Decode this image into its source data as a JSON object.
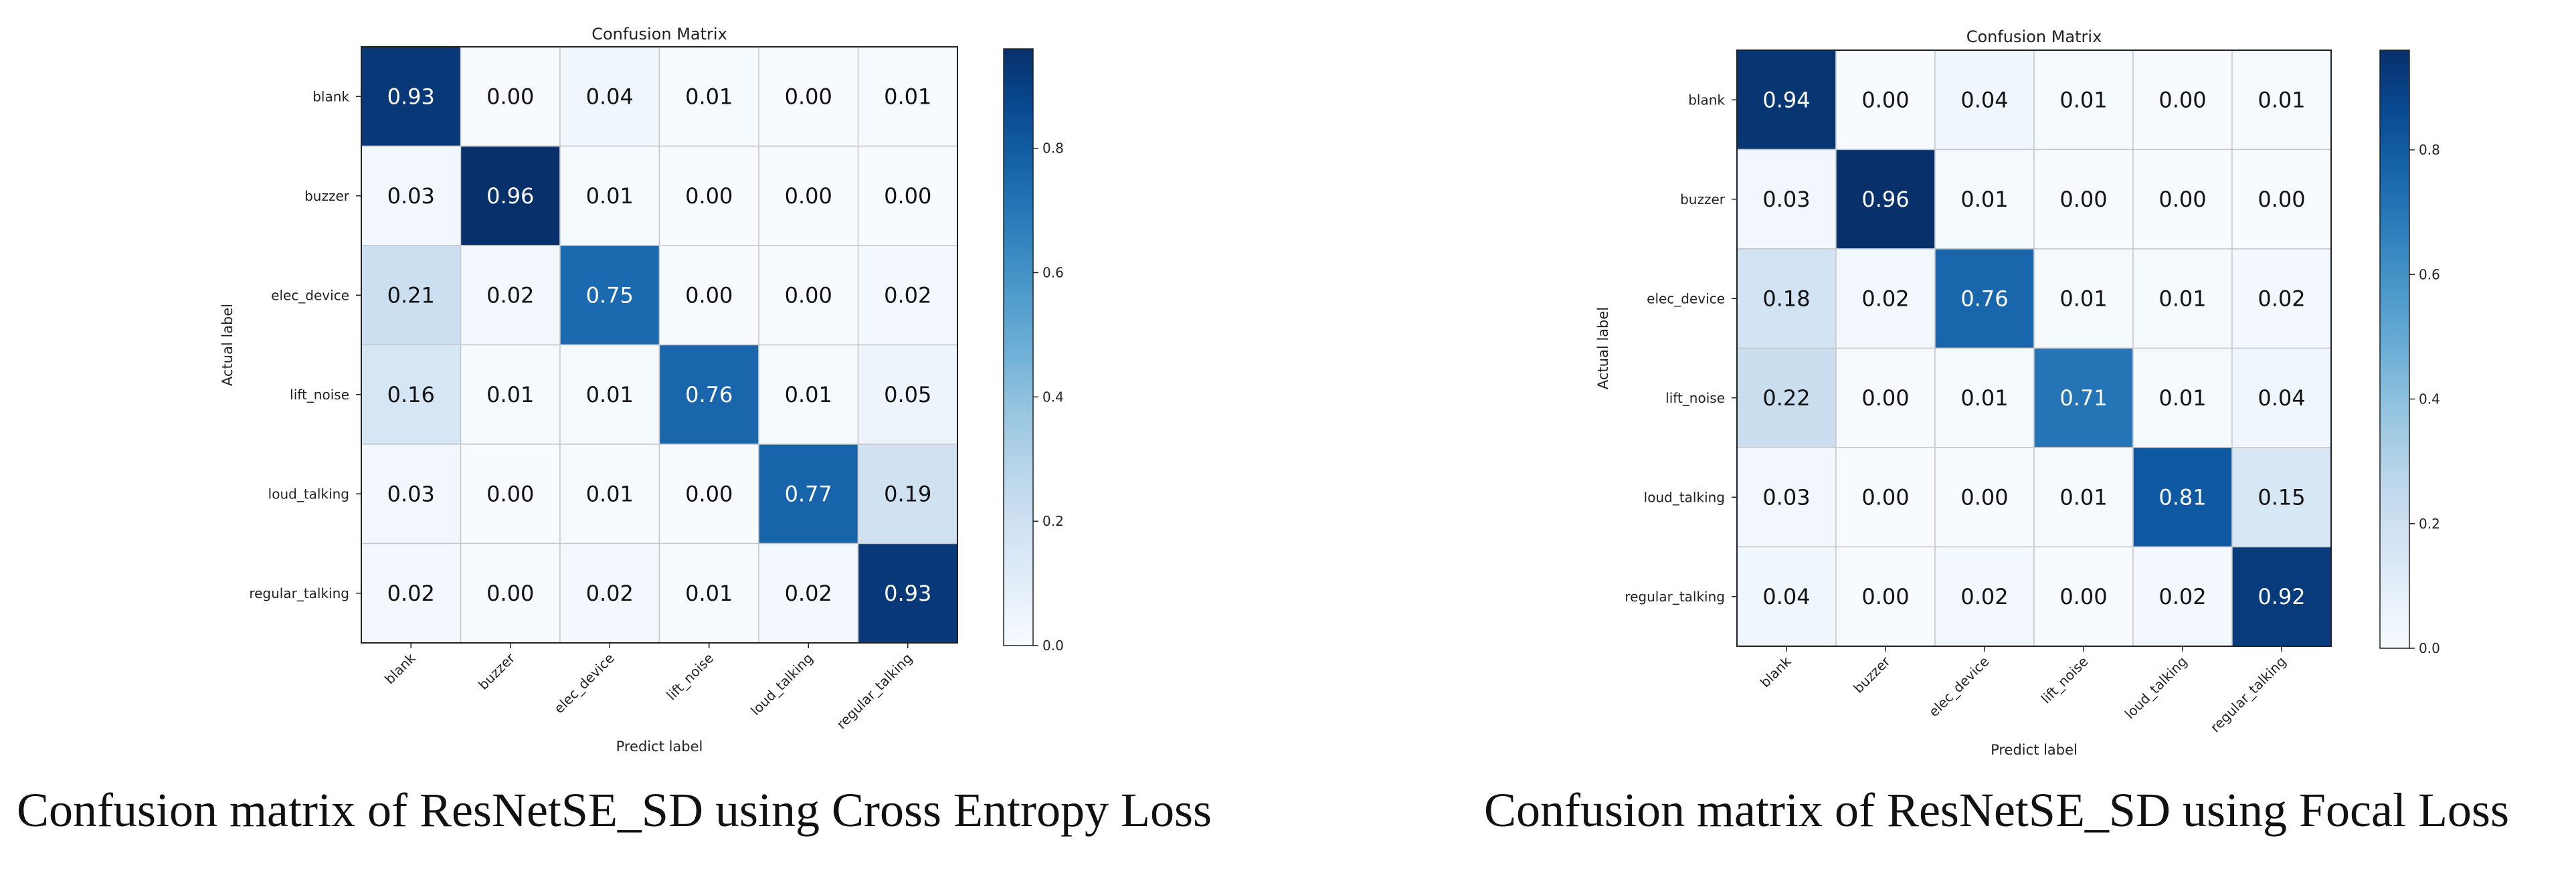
{
  "chart_data": [
    {
      "type": "heatmap",
      "title": "Confusion Matrix",
      "xlabel": "Predict label",
      "ylabel": "Actual label",
      "row_labels": [
        "blank",
        "buzzer",
        "elec_device",
        "lift_noise",
        "loud_talking",
        "regular_talking"
      ],
      "col_labels": [
        "blank",
        "buzzer",
        "elec_device",
        "lift_noise",
        "loud_talking",
        "regular_talking"
      ],
      "values": [
        [
          0.93,
          0.0,
          0.04,
          0.01,
          0.0,
          0.01
        ],
        [
          0.03,
          0.96,
          0.01,
          0.0,
          0.0,
          0.0
        ],
        [
          0.21,
          0.02,
          0.75,
          0.0,
          0.0,
          0.02
        ],
        [
          0.16,
          0.01,
          0.01,
          0.76,
          0.01,
          0.05
        ],
        [
          0.03,
          0.0,
          0.01,
          0.0,
          0.77,
          0.19
        ],
        [
          0.02,
          0.0,
          0.02,
          0.01,
          0.02,
          0.93
        ]
      ],
      "cell_labels": [
        [
          "0.93",
          "0.00",
          "0.04",
          "0.01",
          "0.00",
          "0.01"
        ],
        [
          "0.03",
          "0.96",
          "0.01",
          "0.00",
          "0.00",
          "0.00"
        ],
        [
          "0.21",
          "0.02",
          "0.75",
          "0.00",
          "0.00",
          "0.02"
        ],
        [
          "0.16",
          "0.01",
          "0.01",
          "0.76",
          "0.01",
          "0.05"
        ],
        [
          "0.03",
          "0.00",
          "0.01",
          "0.00",
          "0.77",
          "0.19"
        ],
        [
          "0.02",
          "0.00",
          "0.02",
          "0.01",
          "0.02",
          "0.93"
        ]
      ],
      "colorbar": {
        "range": [
          0,
          0.96
        ],
        "ticks": [
          0.0,
          0.2,
          0.4,
          0.6,
          0.8
        ],
        "tick_labels": [
          "0.0",
          "0.2",
          "0.4",
          "0.6",
          "0.8"
        ],
        "colormap": "Blues"
      },
      "caption": "Confusion matrix of ResNetSE_SD using Cross Entropy Loss"
    },
    {
      "type": "heatmap",
      "title": "Confusion Matrix",
      "xlabel": "Predict label",
      "ylabel": "Actual label",
      "row_labels": [
        "blank",
        "buzzer",
        "elec_device",
        "lift_noise",
        "loud_talking",
        "regular_talking"
      ],
      "col_labels": [
        "blank",
        "buzzer",
        "elec_device",
        "lift_noise",
        "loud_talking",
        "regular_talking"
      ],
      "values": [
        [
          0.94,
          0.0,
          0.04,
          0.01,
          0.0,
          0.01
        ],
        [
          0.03,
          0.96,
          0.01,
          0.0,
          0.0,
          0.0
        ],
        [
          0.18,
          0.02,
          0.76,
          0.01,
          0.01,
          0.02
        ],
        [
          0.22,
          0.0,
          0.01,
          0.71,
          0.01,
          0.04
        ],
        [
          0.03,
          0.0,
          0.0,
          0.01,
          0.81,
          0.15
        ],
        [
          0.04,
          0.0,
          0.02,
          0.0,
          0.02,
          0.92
        ]
      ],
      "cell_labels": [
        [
          "0.94",
          "0.00",
          "0.04",
          "0.01",
          "0.00",
          "0.01"
        ],
        [
          "0.03",
          "0.96",
          "0.01",
          "0.00",
          "0.00",
          "0.00"
        ],
        [
          "0.18",
          "0.02",
          "0.76",
          "0.01",
          "0.01",
          "0.02"
        ],
        [
          "0.22",
          "0.00",
          "0.01",
          "0.71",
          "0.01",
          "0.04"
        ],
        [
          "0.03",
          "0.00",
          "0.00",
          "0.01",
          "0.81",
          "0.15"
        ],
        [
          "0.04",
          "0.00",
          "0.02",
          "0.00",
          "0.02",
          "0.92"
        ]
      ],
      "colorbar": {
        "range": [
          0,
          0.96
        ],
        "ticks": [
          0.0,
          0.2,
          0.4,
          0.6,
          0.8
        ],
        "tick_labels": [
          "0.0",
          "0.2",
          "0.4",
          "0.6",
          "0.8"
        ],
        "colormap": "Blues"
      },
      "caption": "Confusion matrix of ResNetSE_SD using Focal Loss"
    }
  ]
}
